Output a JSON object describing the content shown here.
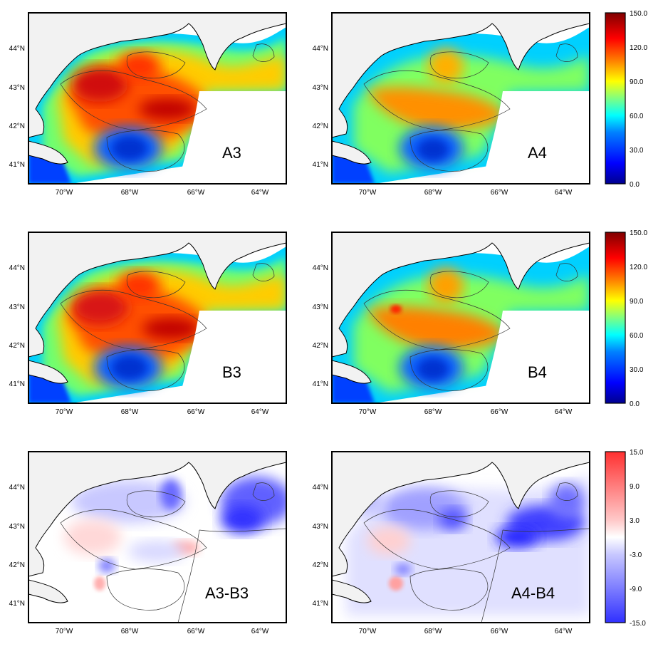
{
  "figure": {
    "panels": [
      {
        "id": "A3",
        "label": "A3",
        "colorbar": "abs"
      },
      {
        "id": "A4",
        "label": "A4",
        "colorbar": "abs"
      },
      {
        "id": "B3",
        "label": "B3",
        "colorbar": "abs"
      },
      {
        "id": "B4",
        "label": "B4",
        "colorbar": "abs"
      },
      {
        "id": "A3-B3",
        "label": "A3-B3",
        "colorbar": "diff"
      },
      {
        "id": "A4-B4",
        "label": "A4-B4",
        "colorbar": "diff"
      }
    ],
    "lon_ticks": [
      "70°W",
      "68°W",
      "66°W",
      "64°W"
    ],
    "lat_ticks": [
      "44°N",
      "43°N",
      "42°N",
      "41°N"
    ],
    "colorbars": {
      "abs": {
        "range": [
          0,
          150
        ],
        "ticks": [
          "150.0",
          "120.0",
          "90.0",
          "60.0",
          "30.0",
          "0.0"
        ],
        "colors": [
          "#00008f",
          "#0000ff",
          "#0080ff",
          "#00ffff",
          "#80ff80",
          "#ffff00",
          "#ff8000",
          "#ff0000",
          "#800000"
        ]
      },
      "diff": {
        "range": [
          -15,
          15
        ],
        "ticks": [
          "15.0",
          "9.0",
          "3.0",
          "-3.0",
          "-9.0",
          "-15.0"
        ],
        "colors": [
          "#3030ff",
          "#7d7dff",
          "#c8c8ff",
          "#ffffff",
          "#ffc8c8",
          "#ff7d7d",
          "#ff3030"
        ]
      }
    },
    "colors": {
      "land": "#f2f2f2",
      "sea_bg": "#ffffff",
      "coast": "#000000",
      "contour": "#333333"
    }
  }
}
